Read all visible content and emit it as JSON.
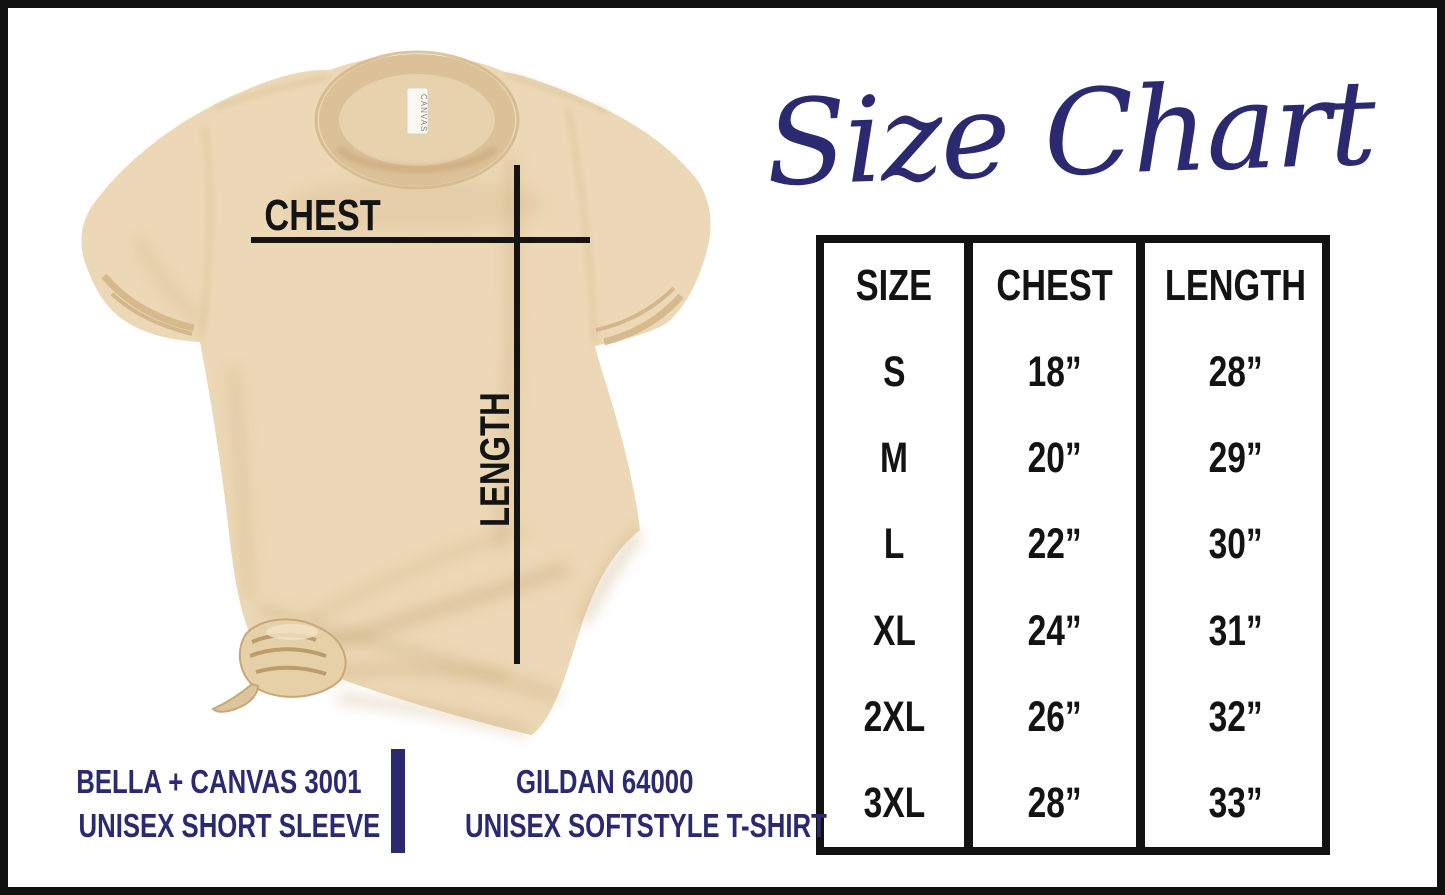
{
  "title": "Size Chart",
  "colors": {
    "navy": "#2b2970",
    "black": "#141414",
    "shirt_base": "#ecd8b6",
    "shirt_shadow": "#c9a474",
    "border": "#121212",
    "background": "#ffffff"
  },
  "shirt": {
    "chest_label": "CHEST",
    "length_label": "LENGTH",
    "tag_text": "CANVAS"
  },
  "size_table": {
    "headers": [
      "SIZE",
      "CHEST",
      "LENGTH"
    ],
    "rows": [
      [
        "S",
        "18”",
        "28”"
      ],
      [
        "M",
        "20”",
        "29”"
      ],
      [
        "L",
        "22”",
        "30”"
      ],
      [
        "XL",
        "24”",
        "31”"
      ],
      [
        "2XL",
        "26”",
        "32”"
      ],
      [
        "3XL",
        "28”",
        "33”"
      ]
    ]
  },
  "brands": {
    "left": {
      "line1": "BELLA + CANVAS 3001",
      "line2": "UNISEX SHORT SLEEVE"
    },
    "right": {
      "line1": "GILDAN 64000",
      "line2": "UNISEX SOFTSTYLE T-SHIRT"
    }
  },
  "chart_data": {
    "type": "table",
    "title": "Size Chart",
    "columns": [
      "SIZE",
      "CHEST",
      "LENGTH"
    ],
    "rows": [
      [
        "S",
        "18\"",
        "28\""
      ],
      [
        "M",
        "20\"",
        "29\""
      ],
      [
        "L",
        "22\"",
        "30\""
      ],
      [
        "XL",
        "24\"",
        "31\""
      ],
      [
        "2XL",
        "26\"",
        "32\""
      ],
      [
        "3XL",
        "28\"",
        "33\""
      ]
    ],
    "units": "inches",
    "notes": [
      "BELLA + CANVAS 3001 UNISEX SHORT SLEEVE",
      "GILDAN 64000 UNISEX SOFTSTYLE T-SHIRT"
    ]
  }
}
